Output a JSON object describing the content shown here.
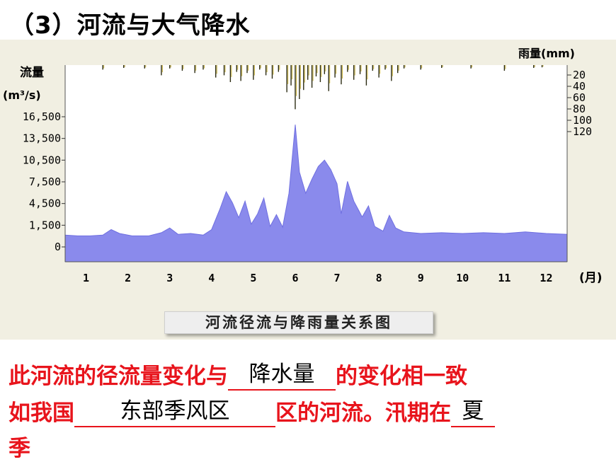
{
  "heading": "（3）河流与大气降水",
  "chart_data": {
    "type": "bar",
    "title": "河流径流与降雨量关系图",
    "y_left_label_line1": "流量",
    "y_left_label_line2": "(m³/s)",
    "y_right_label": "雨量(mm)",
    "x_unit": "(月)",
    "x_categories": [
      "1",
      "2",
      "3",
      "4",
      "5",
      "6",
      "7",
      "8",
      "9",
      "10",
      "11",
      "12"
    ],
    "y_left_ticks": [
      "16,500",
      "13,500",
      "10,500",
      "7,500",
      "4,500",
      "1,500",
      "0"
    ],
    "y_right_ticks": [
      "20",
      "40",
      "60",
      "80",
      "100",
      "120"
    ],
    "discharge_series": [
      [
        0.0,
        1500
      ],
      [
        0.3,
        1400
      ],
      [
        0.6,
        1400
      ],
      [
        0.9,
        1500
      ],
      [
        1.1,
        2200
      ],
      [
        1.3,
        1700
      ],
      [
        1.6,
        1400
      ],
      [
        2.0,
        1400
      ],
      [
        2.3,
        1800
      ],
      [
        2.5,
        2400
      ],
      [
        2.7,
        1600
      ],
      [
        3.0,
        1700
      ],
      [
        3.3,
        1500
      ],
      [
        3.5,
        2200
      ],
      [
        3.7,
        4800
      ],
      [
        3.85,
        7000
      ],
      [
        4.0,
        5600
      ],
      [
        4.15,
        3700
      ],
      [
        4.3,
        5800
      ],
      [
        4.45,
        2900
      ],
      [
        4.6,
        4200
      ],
      [
        4.75,
        6200
      ],
      [
        4.9,
        2600
      ],
      [
        5.05,
        4100
      ],
      [
        5.2,
        2500
      ],
      [
        5.35,
        6800
      ],
      [
        5.5,
        15500
      ],
      [
        5.6,
        9500
      ],
      [
        5.75,
        6800
      ],
      [
        5.9,
        8600
      ],
      [
        6.05,
        10200
      ],
      [
        6.2,
        11000
      ],
      [
        6.35,
        9800
      ],
      [
        6.5,
        8000
      ],
      [
        6.6,
        4200
      ],
      [
        6.75,
        8300
      ],
      [
        6.9,
        5800
      ],
      [
        7.1,
        3800
      ],
      [
        7.25,
        5200
      ],
      [
        7.4,
        2600
      ],
      [
        7.6,
        2000
      ],
      [
        7.75,
        4000
      ],
      [
        7.9,
        2400
      ],
      [
        8.1,
        1900
      ],
      [
        8.5,
        1700
      ],
      [
        9.0,
        1800
      ],
      [
        9.5,
        1700
      ],
      [
        10.0,
        1800
      ],
      [
        10.5,
        1700
      ],
      [
        11.0,
        1900
      ],
      [
        11.5,
        1700
      ],
      [
        12.0,
        1600
      ]
    ],
    "rainfall_series": [
      [
        0.9,
        8
      ],
      [
        1.4,
        5
      ],
      [
        1.9,
        6
      ],
      [
        2.3,
        18
      ],
      [
        2.5,
        6
      ],
      [
        2.8,
        10
      ],
      [
        3.1,
        14
      ],
      [
        3.3,
        8
      ],
      [
        3.6,
        22
      ],
      [
        3.8,
        18
      ],
      [
        3.95,
        30
      ],
      [
        4.1,
        12
      ],
      [
        4.2,
        28
      ],
      [
        4.35,
        14
      ],
      [
        4.5,
        26
      ],
      [
        4.65,
        8
      ],
      [
        4.8,
        18
      ],
      [
        4.95,
        24
      ],
      [
        5.1,
        12
      ],
      [
        5.3,
        48
      ],
      [
        5.4,
        36
      ],
      [
        5.5,
        78
      ],
      [
        5.6,
        60
      ],
      [
        5.7,
        44
      ],
      [
        5.8,
        26
      ],
      [
        5.9,
        40
      ],
      [
        6.0,
        20
      ],
      [
        6.1,
        30
      ],
      [
        6.2,
        16
      ],
      [
        6.3,
        46
      ],
      [
        6.45,
        22
      ],
      [
        6.6,
        34
      ],
      [
        6.75,
        12
      ],
      [
        6.9,
        26
      ],
      [
        7.05,
        16
      ],
      [
        7.2,
        36
      ],
      [
        7.35,
        10
      ],
      [
        7.5,
        22
      ],
      [
        7.65,
        8
      ],
      [
        7.8,
        28
      ],
      [
        7.95,
        14
      ],
      [
        8.1,
        6
      ],
      [
        8.5,
        8
      ],
      [
        9.0,
        5
      ],
      [
        9.7,
        6
      ],
      [
        10.5,
        10
      ],
      [
        11.2,
        5
      ],
      [
        11.4,
        4
      ]
    ]
  },
  "statement": {
    "line1_a": "此河流的径流量变化与",
    "line1_answer": "降水量",
    "line1_b": "的变化相一致",
    "line2_a": "如我国",
    "line2_answer": "东部季风区",
    "line2_b": "区的河流。汛期在",
    "line2_answer2": "夏",
    "line3": "季"
  }
}
